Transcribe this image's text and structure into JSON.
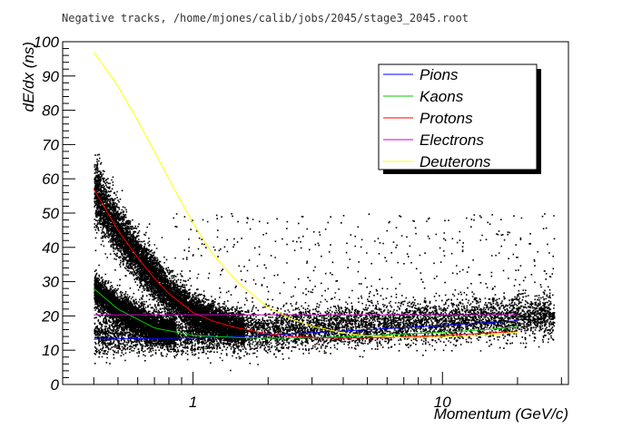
{
  "chart_data": {
    "type": "scatter",
    "title": "Negative tracks, /home/mjones/calib/jobs/2045/stage3_2045.root",
    "xlabel": "Momentum (GeV/c)",
    "ylabel": "dE/dx  (ns)",
    "x_scale": "log",
    "xlim": [
      0.3,
      32
    ],
    "ylim": [
      0,
      100
    ],
    "x_ticks": [
      {
        "value": 1,
        "label": "1"
      },
      {
        "value": 10,
        "label": "10"
      }
    ],
    "y_ticks": [
      {
        "value": 0,
        "label": "0"
      },
      {
        "value": 10,
        "label": "10"
      },
      {
        "value": 20,
        "label": "20"
      },
      {
        "value": 30,
        "label": "30"
      },
      {
        "value": 40,
        "label": "40"
      },
      {
        "value": 50,
        "label": "50"
      },
      {
        "value": 60,
        "label": "60"
      },
      {
        "value": 70,
        "label": "70"
      },
      {
        "value": 80,
        "label": "80"
      },
      {
        "value": 90,
        "label": "90"
      },
      {
        "value": 100,
        "label": "100"
      }
    ],
    "grid": false,
    "legend_position": "top-right",
    "series": [
      {
        "name": "Pions",
        "color": "#0000ff",
        "x": [
          0.4,
          1,
          2,
          4,
          8,
          12,
          20
        ],
        "y": [
          13.2,
          13.6,
          14.4,
          15.6,
          16.8,
          17.6,
          18.6
        ]
      },
      {
        "name": "Kaons",
        "color": "#00cc00",
        "x": [
          0.4,
          0.5,
          0.7,
          1,
          1.5,
          2,
          3,
          4,
          6,
          10,
          15,
          20
        ],
        "y": [
          28,
          22,
          16.5,
          14.3,
          13.7,
          13.5,
          13.6,
          13.9,
          14.5,
          15.2,
          16,
          16.8
        ]
      },
      {
        "name": "Protons",
        "color": "#ff0000",
        "x": [
          0.4,
          0.5,
          0.6,
          0.7,
          0.8,
          1,
          1.2,
          1.5,
          2,
          2.5,
          3,
          4,
          6,
          10,
          20
        ],
        "y": [
          57,
          45,
          37,
          31,
          26.5,
          21,
          18.5,
          16.5,
          14.8,
          14,
          13.7,
          13.5,
          13.7,
          14.3,
          15.5
        ]
      },
      {
        "name": "Electrons",
        "color": "#cc00cc",
        "x": [
          0.4,
          20
        ],
        "y": [
          20.3,
          20.3
        ]
      },
      {
        "name": "Deuterons",
        "color": "#ffff00",
        "x": [
          0.4,
          0.5,
          0.6,
          0.7,
          0.8,
          1,
          1.2,
          1.5,
          2,
          2.5,
          3,
          4,
          5,
          7,
          10,
          15,
          20
        ],
        "y": [
          97,
          87,
          77,
          68,
          60,
          47,
          38,
          30,
          22.5,
          19,
          17,
          15,
          14.2,
          13.7,
          13.8,
          14.5,
          15.2
        ]
      }
    ]
  }
}
